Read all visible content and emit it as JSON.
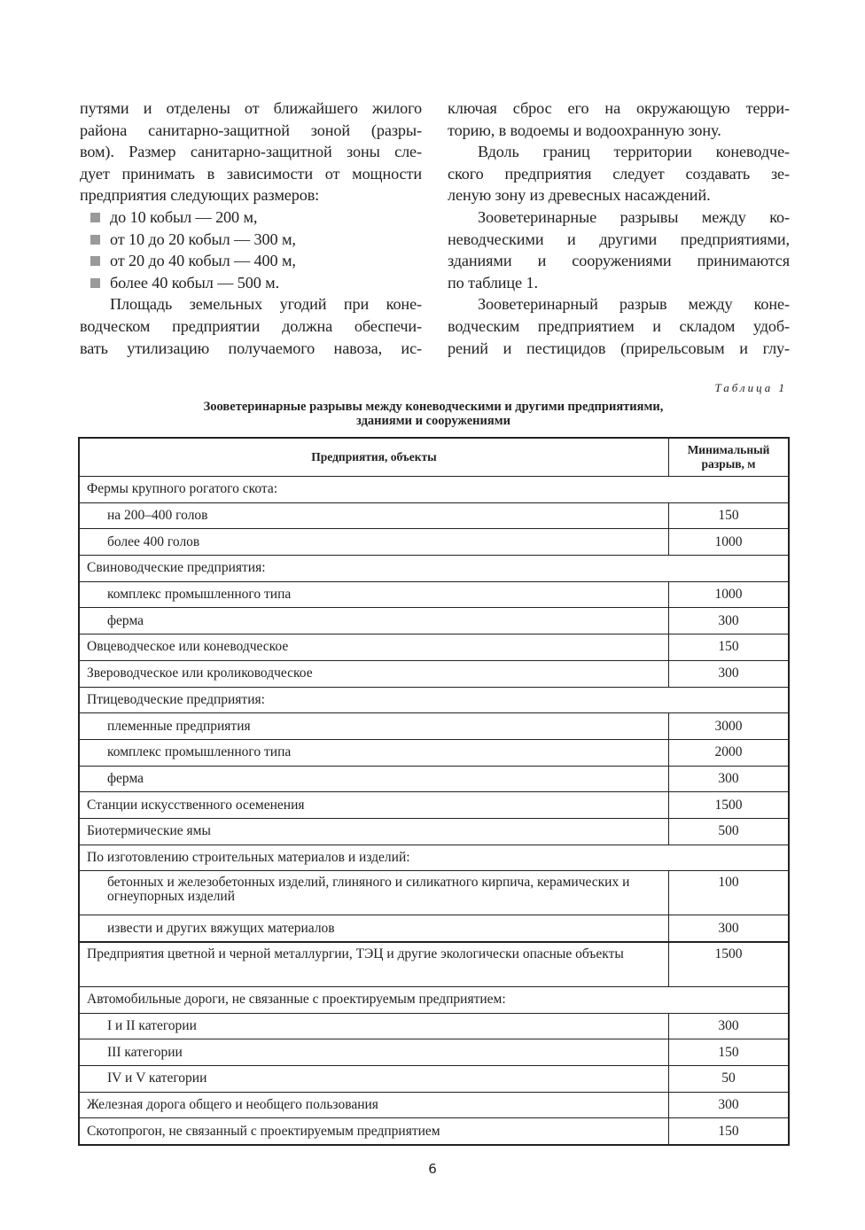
{
  "left_column": [
    {
      "t": "путями и отделены от ближайшего жилого",
      "c": ""
    },
    {
      "t": "района санитарно-защитной зоной (разры-",
      "c": ""
    },
    {
      "t": "вом). Размер санитарно-защитной зоны сле-",
      "c": ""
    },
    {
      "t": "дует принимать в зависимости от мощности",
      "c": ""
    },
    {
      "t": "предприятия следующих размеров:",
      "c": "end"
    },
    {
      "t": "до 10 кобыл — 200 м,",
      "c": "bul"
    },
    {
      "t": "от 10 до 20 кобыл — 300 м,",
      "c": "bul"
    },
    {
      "t": "от 20 до 40 кобыл — 400 м,",
      "c": "bul"
    },
    {
      "t": "более 40 кобыл — 500 м.",
      "c": "bul"
    },
    {
      "t": "Площадь земельных угодий при коне-",
      "c": "ind"
    },
    {
      "t": "водческом предприятии должна обеспечи-",
      "c": ""
    },
    {
      "t": "вать утилизацию получаемого навоза, ис-",
      "c": ""
    }
  ],
  "right_column": [
    {
      "t": "ключая сброс его на окружающую терри-",
      "c": ""
    },
    {
      "t": "торию, в водоемы и водоохранную зону.",
      "c": "end"
    },
    {
      "t": "Вдоль границ территории коневодче-",
      "c": "ind"
    },
    {
      "t": "ского предприятия следует создавать зе-",
      "c": ""
    },
    {
      "t": "леную зону из древесных насаждений.",
      "c": "end"
    },
    {
      "t": "Зооветеринарные разрывы между ко-",
      "c": "ind"
    },
    {
      "t": "неводческими и другими предприятиями,",
      "c": ""
    },
    {
      "t": "зданиями и сооружениями принимаются",
      "c": ""
    },
    {
      "t": "по таблице 1.",
      "c": "end"
    },
    {
      "t": "Зооветеринарный разрыв между коне-",
      "c": "ind"
    },
    {
      "t": "водческим предприятием и складом удоб-",
      "c": ""
    },
    {
      "t": "рений и пестицидов (прирельсовым и глу-",
      "c": ""
    }
  ],
  "table": {
    "number_label": "Таблица 1",
    "title_line1": "Зооветеринарные разрывы между коневодческими и другими предприятиями,",
    "title_line2": "зданиями и сооружениями",
    "header_col1": "Предприятия, объекты",
    "header_col2_line1": "Минимальный",
    "header_col2_line2": "разрыв, м",
    "rows": [
      {
        "label": "Фермы крупного рогатого скота:",
        "section": true
      },
      {
        "label": "на 200–400 голов",
        "value": "150",
        "indent": true
      },
      {
        "label": "более 400 голов",
        "value": "1000",
        "indent": true
      },
      {
        "label": "Свиноводческие предприятия:",
        "section": true
      },
      {
        "label": "комплекс промышленного типа",
        "value": "1000",
        "indent": true
      },
      {
        "label": "ферма",
        "value": "300",
        "indent": true
      },
      {
        "label": "Овцеводческое или коневодческое",
        "value": "150"
      },
      {
        "label": "Звероводческое или кролиководческое",
        "value": "300"
      },
      {
        "label": "Птицеводческие предприятия:",
        "section": true
      },
      {
        "label": "племенные предприятия",
        "value": "3000",
        "indent": true
      },
      {
        "label": "комплекс промышленного типа",
        "value": "2000",
        "indent": true
      },
      {
        "label": "ферма",
        "value": "300",
        "indent": true
      },
      {
        "label": "Станции искусственного осеменения",
        "value": "1500"
      },
      {
        "label": "Биотермические ямы",
        "value": "500"
      },
      {
        "label": "По изготовлению строительных материалов и изделий:",
        "section": true
      },
      {
        "label": "бетонных и железобетонных изделий, глиняного и силикатного кирпича, керамических и огнеупорных изделий",
        "value": "100",
        "indent": true,
        "multi": true
      },
      {
        "label": "извести и других вяжущих материалов",
        "value": "300",
        "indent": true
      },
      {
        "label": "Предприятия цветной и черной металлургии, ТЭЦ и другие экологически опасные объекты",
        "value": "1500",
        "multi": true,
        "thick": true
      },
      {
        "label": "Автомобильные дороги, не связанные с проектируемым предприятием:",
        "section": true
      },
      {
        "label": "I и II категории",
        "value": "300",
        "indent": true
      },
      {
        "label": "III категории",
        "value": "150",
        "indent": true
      },
      {
        "label": "IV и V категории",
        "value": "50",
        "indent": true
      },
      {
        "label": "Железная дорога общего и необщего пользования",
        "value": "300"
      },
      {
        "label": "Скотопрогон, не связанный с проектируемым предприятием",
        "value": "150"
      }
    ]
  },
  "page_number": "6"
}
